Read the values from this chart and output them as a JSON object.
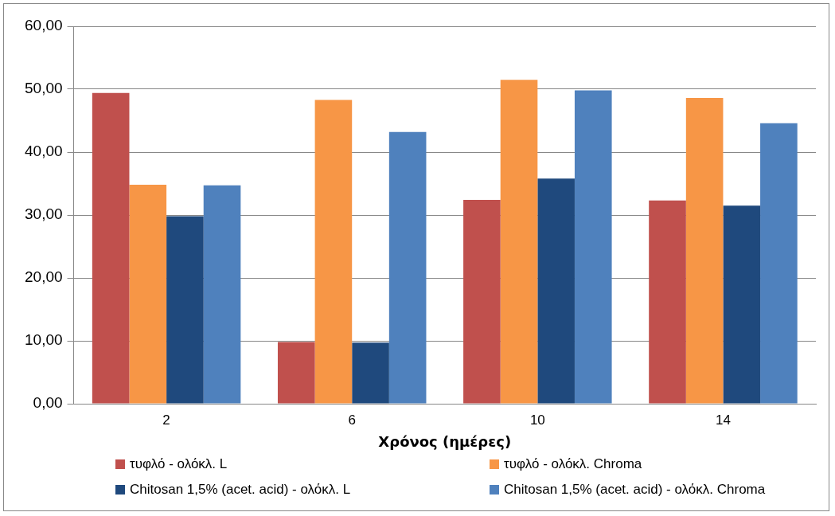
{
  "chart_data": {
    "type": "bar",
    "xlabel": "Χρόνος (ημέρες)",
    "categories": [
      "2",
      "6",
      "10",
      "14"
    ],
    "series": [
      {
        "name": "τυφλό - ολόκλ. L",
        "color": "#c0504d",
        "values": [
          49.4,
          9.8,
          32.4,
          32.3
        ]
      },
      {
        "name": "τυφλό - ολόκλ. Chroma",
        "color": "#f79646",
        "values": [
          34.8,
          48.3,
          51.5,
          48.6
        ]
      },
      {
        "name": "Chitosan 1,5% (acet. acid) - ολόκλ. L",
        "color": "#1f497d",
        "values": [
          29.8,
          9.7,
          35.8,
          31.5
        ]
      },
      {
        "name": "Chitosan 1,5% (acet. acid) - ολόκλ. Chroma",
        "color": "#4f81bd",
        "values": [
          34.7,
          43.2,
          49.8,
          44.6
        ]
      }
    ],
    "ylim": [
      0,
      60
    ],
    "yticks": [
      {
        "value": 0,
        "label": "0,00"
      },
      {
        "value": 10,
        "label": "10,00"
      },
      {
        "value": 20,
        "label": "20,00"
      },
      {
        "value": 30,
        "label": "30,00"
      },
      {
        "value": 40,
        "label": "40,00"
      },
      {
        "value": 50,
        "label": "50,00"
      },
      {
        "value": 60,
        "label": "60,00"
      }
    ],
    "grid": "y",
    "legend": "bottom"
  }
}
